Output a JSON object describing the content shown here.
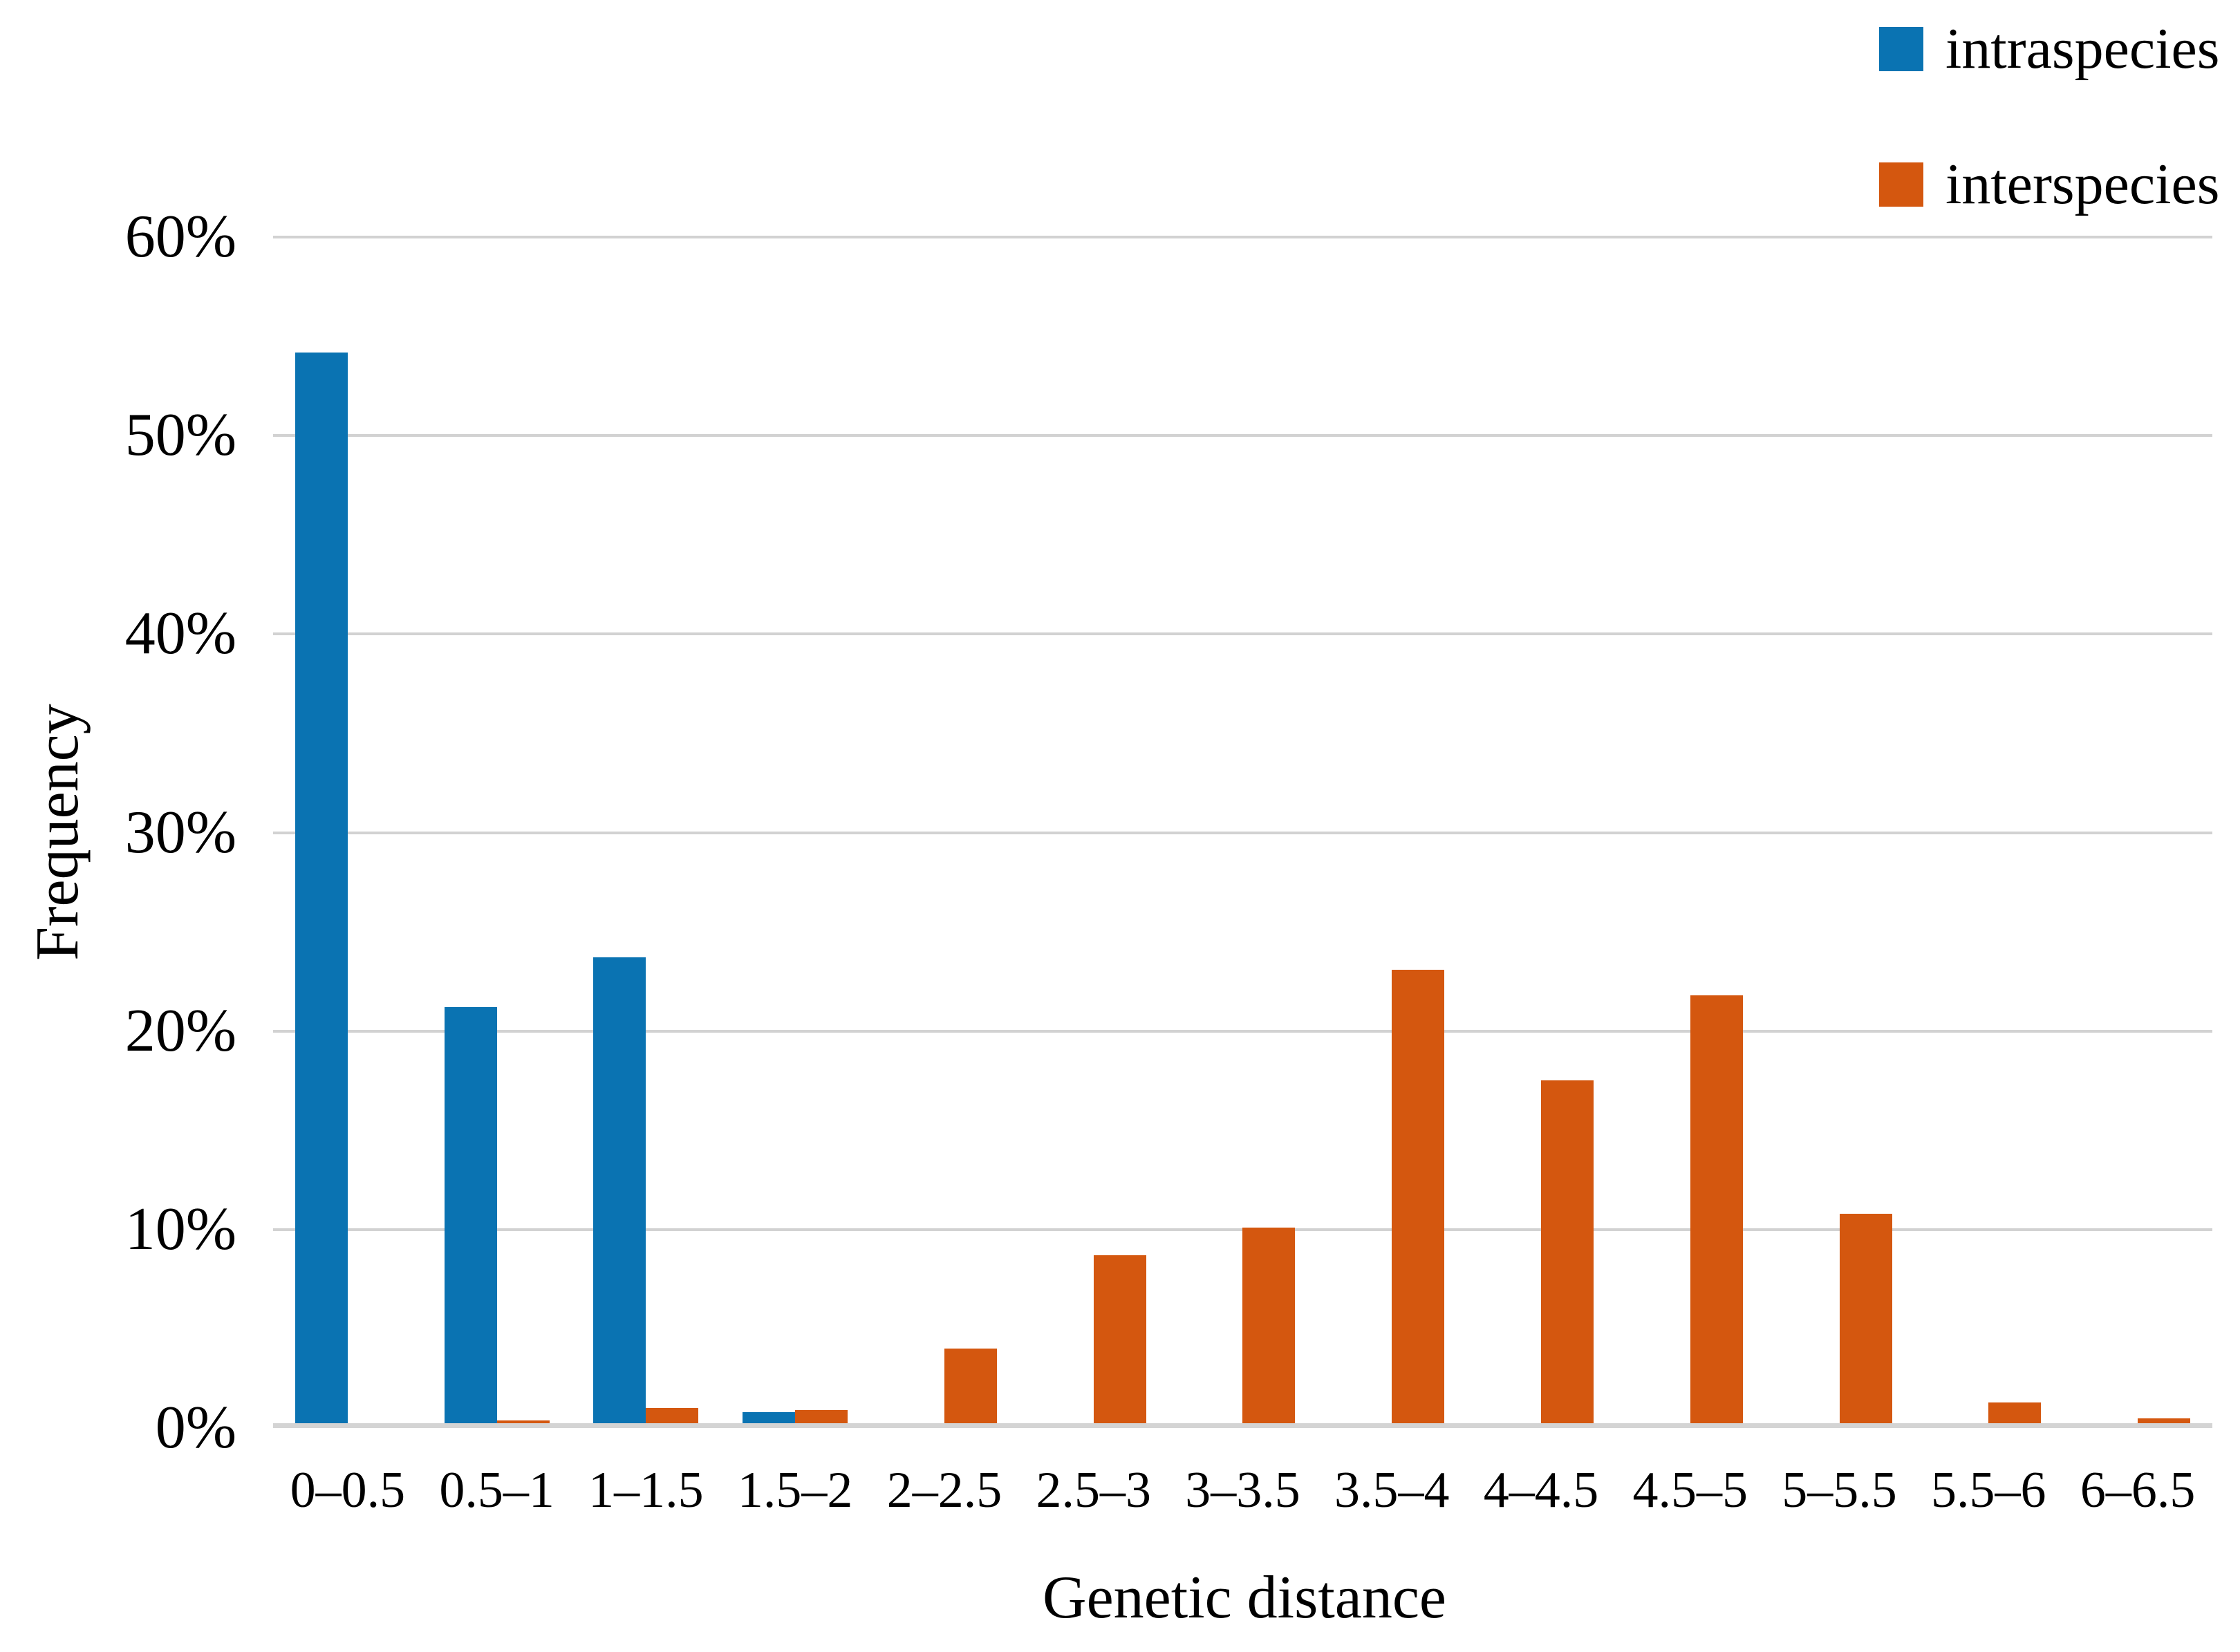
{
  "chart_data": {
    "type": "bar",
    "title": "",
    "xlabel": "Genetic distance",
    "ylabel": "Frequency",
    "categories": [
      "0–0.5",
      "0.5–1",
      "1–1.5",
      "1.5–2",
      "2–2.5",
      "2.5–3",
      "3–3.5",
      "3.5–4",
      "4–4.5",
      "4.5–5",
      "5–5.5",
      "5.5–6",
      "6–6.5"
    ],
    "series": [
      {
        "name": "intraspecies",
        "color": "#0a73b2",
        "values": [
          54.2,
          21.2,
          23.7,
          0.8,
          0,
          0,
          0,
          0,
          0,
          0,
          0,
          0,
          0
        ]
      },
      {
        "name": "interspecies",
        "color": "#d4570f",
        "values": [
          0,
          0.4,
          1.0,
          0.9,
          4.0,
          8.7,
          10.1,
          23.1,
          17.5,
          21.8,
          10.8,
          1.3,
          0.5
        ]
      }
    ],
    "ylim": [
      0,
      60
    ],
    "ytick_step": 10,
    "ytick_labels": [
      "0%",
      "10%",
      "20%",
      "30%",
      "40%",
      "50%",
      "60%"
    ],
    "grid": true,
    "gridline_color": "#d2d2d2",
    "legend_position": "top-right"
  }
}
